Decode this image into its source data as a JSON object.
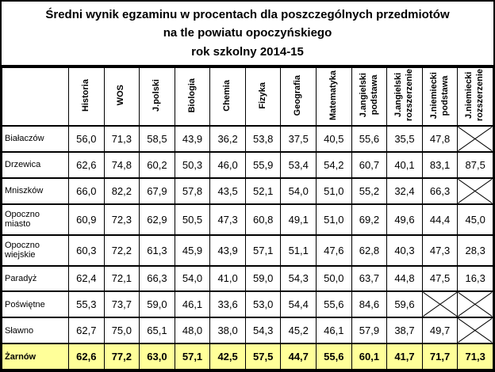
{
  "title": {
    "line1": "Średni wynik egzaminu w procentach dla poszczególnych przedmiotów",
    "line2": "na tle powiatu opoczyńskiego",
    "line3": "rok szkolny 2014-15"
  },
  "colors": {
    "highlight_row": "#FFFF99",
    "border": "#000000",
    "background": "#FFFFFF"
  },
  "table": {
    "columns": [
      "Historia",
      "WOS",
      "J.polski",
      "Biologia",
      "Chemia",
      "Fizyka",
      "Geografia",
      "Matematyka",
      "J.angielski\npodstawa",
      "J.angielski\nrozszerzenie",
      "J.niemiecki\npodstawa",
      "J.niemiecki\nrozszerzenie"
    ],
    "rows": [
      {
        "name": "Białaczów",
        "tall": false,
        "highlight": false,
        "values": [
          "56,0",
          "71,3",
          "58,5",
          "43,9",
          "36,2",
          "53,8",
          "37,5",
          "40,5",
          "55,6",
          "35,5",
          "47,8",
          null
        ]
      },
      {
        "name": "Drzewica",
        "tall": false,
        "highlight": false,
        "values": [
          "62,6",
          "74,8",
          "60,2",
          "50,3",
          "46,0",
          "55,9",
          "53,4",
          "54,2",
          "60,7",
          "40,1",
          "83,1",
          "87,5"
        ]
      },
      {
        "name": "Mniszków",
        "tall": false,
        "highlight": false,
        "values": [
          "66,0",
          "82,2",
          "67,9",
          "57,8",
          "43,5",
          "52,1",
          "54,0",
          "51,0",
          "55,2",
          "32,4",
          "66,3",
          null
        ]
      },
      {
        "name": "Opoczno miasto",
        "tall": true,
        "highlight": false,
        "values": [
          "60,9",
          "72,3",
          "62,9",
          "50,5",
          "47,3",
          "60,8",
          "49,1",
          "51,0",
          "69,2",
          "49,6",
          "44,4",
          "45,0"
        ]
      },
      {
        "name": "Opoczno wiejskie",
        "tall": true,
        "highlight": false,
        "values": [
          "60,3",
          "72,2",
          "61,3",
          "45,9",
          "43,9",
          "57,1",
          "51,1",
          "47,6",
          "62,8",
          "40,3",
          "47,3",
          "28,3"
        ]
      },
      {
        "name": "Paradyż",
        "tall": false,
        "highlight": false,
        "values": [
          "62,4",
          "72,1",
          "66,3",
          "54,0",
          "41,0",
          "59,0",
          "54,3",
          "50,0",
          "63,7",
          "44,8",
          "47,5",
          "16,3"
        ]
      },
      {
        "name": "Poświętne",
        "tall": false,
        "highlight": false,
        "values": [
          "55,3",
          "73,7",
          "59,0",
          "46,1",
          "33,6",
          "53,0",
          "54,4",
          "55,6",
          "84,6",
          "59,6",
          null,
          null
        ]
      },
      {
        "name": "Sławno",
        "tall": false,
        "highlight": false,
        "values": [
          "62,7",
          "75,0",
          "65,1",
          "48,0",
          "38,0",
          "54,3",
          "45,2",
          "46,1",
          "57,9",
          "38,7",
          "49,7",
          null
        ]
      },
      {
        "name": "Żarnów",
        "tall": false,
        "highlight": true,
        "values": [
          "62,6",
          "77,2",
          "63,0",
          "57,1",
          "42,5",
          "57,5",
          "44,7",
          "55,6",
          "60,1",
          "41,7",
          "71,7",
          "71,3"
        ]
      }
    ]
  },
  "chart_data": {
    "type": "table",
    "title": "Średni wynik egzaminu w procentach dla poszczególnych przedmiotów na tle powiatu opoczyńskiego rok szkolny 2014-15",
    "unit": "percent",
    "categories": [
      "Historia",
      "WOS",
      "J.polski",
      "Biologia",
      "Chemia",
      "Fizyka",
      "Geografia",
      "Matematyka",
      "J.angielski podstawa",
      "J.angielski rozszerzenie",
      "J.niemiecki podstawa",
      "J.niemiecki rozszerzenie"
    ],
    "series": [
      {
        "name": "Białaczów",
        "values": [
          56.0,
          71.3,
          58.5,
          43.9,
          36.2,
          53.8,
          37.5,
          40.5,
          55.6,
          35.5,
          47.8,
          null
        ]
      },
      {
        "name": "Drzewica",
        "values": [
          62.6,
          74.8,
          60.2,
          50.3,
          46.0,
          55.9,
          53.4,
          54.2,
          60.7,
          40.1,
          83.1,
          87.5
        ]
      },
      {
        "name": "Mniszków",
        "values": [
          66.0,
          82.2,
          67.9,
          57.8,
          43.5,
          52.1,
          54.0,
          51.0,
          55.2,
          32.4,
          66.3,
          null
        ]
      },
      {
        "name": "Opoczno miasto",
        "values": [
          60.9,
          72.3,
          62.9,
          50.5,
          47.3,
          60.8,
          49.1,
          51.0,
          69.2,
          49.6,
          44.4,
          45.0
        ]
      },
      {
        "name": "Opoczno wiejskie",
        "values": [
          60.3,
          72.2,
          61.3,
          45.9,
          43.9,
          57.1,
          51.1,
          47.6,
          62.8,
          40.3,
          47.3,
          28.3
        ]
      },
      {
        "name": "Paradyż",
        "values": [
          62.4,
          72.1,
          66.3,
          54.0,
          41.0,
          59.0,
          54.3,
          50.0,
          63.7,
          44.8,
          47.5,
          16.3
        ]
      },
      {
        "name": "Poświętne",
        "values": [
          55.3,
          73.7,
          59.0,
          46.1,
          33.6,
          53.0,
          54.4,
          55.6,
          84.6,
          59.6,
          null,
          null
        ]
      },
      {
        "name": "Sławno",
        "values": [
          62.7,
          75.0,
          65.1,
          48.0,
          38.0,
          54.3,
          45.2,
          46.1,
          57.9,
          38.7,
          49.7,
          null
        ]
      },
      {
        "name": "Żarnów",
        "values": [
          62.6,
          77.2,
          63.0,
          57.1,
          42.5,
          57.5,
          44.7,
          55.6,
          60.1,
          41.7,
          71.7,
          71.3
        ]
      }
    ],
    "note_null_means": "crossed-out cell (no result)",
    "highlighted_series": "Żarnów"
  }
}
